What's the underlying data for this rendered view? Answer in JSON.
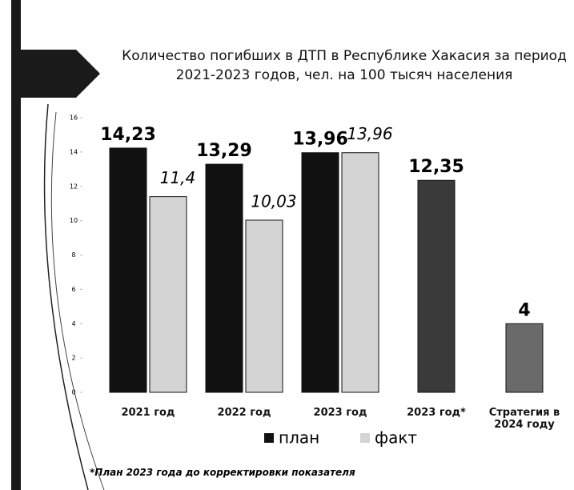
{
  "chart_data": {
    "type": "bar",
    "title": "Количество погибших в ДТП в Республике Хакасия за период 2021-2023 годов, чел. на 100 тысяч населения",
    "categories": [
      "2021 год",
      "2022 год",
      "2023 год",
      "2023 год*",
      "Стратегия в 2024 году"
    ],
    "series": [
      {
        "name": "план",
        "color": "#111111",
        "colors": [
          "#111111",
          "#111111",
          "#111111",
          "#3a3a3a",
          "#6a6a6a"
        ],
        "values": [
          14.23,
          13.29,
          13.96,
          12.35,
          4
        ],
        "value_labels": [
          "14,23",
          "13,29",
          "13,96",
          "12,35",
          "4"
        ]
      },
      {
        "name": "факт",
        "color": "#d4d4d4",
        "values": [
          11.4,
          10.03,
          13.96,
          null,
          null
        ],
        "value_labels": [
          "11,4",
          "10,03",
          "13,96",
          null,
          null
        ]
      }
    ],
    "ylim": [
      0,
      16
    ],
    "yticks": [
      0,
      2,
      4,
      6,
      8,
      10,
      12,
      14,
      16
    ],
    "grid": false,
    "note": "*План 2023 года до корректировки показателя"
  }
}
